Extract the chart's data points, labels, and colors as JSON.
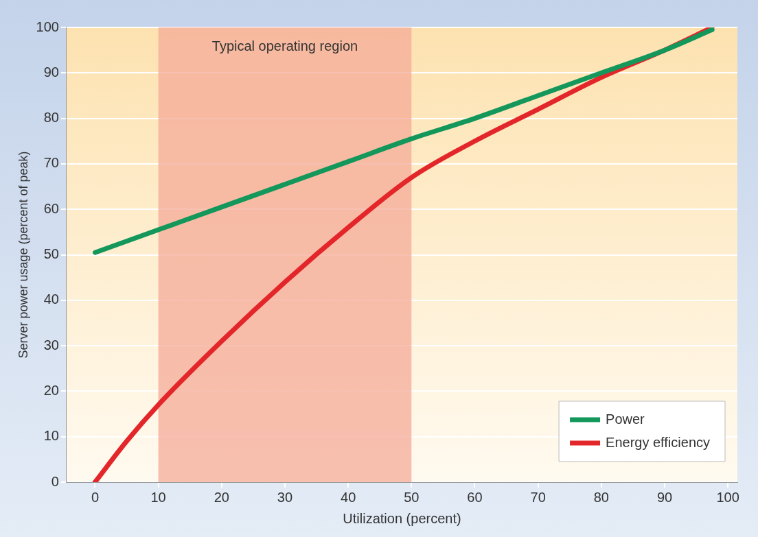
{
  "chart_data": {
    "type": "line",
    "xlabel": "Utilization (percent)",
    "ylabel": "Server power usage (percent of peak)",
    "xlim": [
      -4.5,
      101.5
    ],
    "xticks": [
      0,
      10,
      20,
      30,
      40,
      50,
      60,
      70,
      80,
      90,
      100
    ],
    "ylim": [
      0,
      100
    ],
    "yticks": [
      0,
      10,
      20,
      30,
      40,
      50,
      60,
      70,
      80,
      90,
      100
    ],
    "grid": "y",
    "legend": "bottom right",
    "line_style": "solid",
    "bands": [
      {
        "axis": "x",
        "from": 10,
        "to": 50,
        "label": "Typical operating region",
        "color": "#f4ab98"
      }
    ],
    "series": [
      {
        "name": "Power",
        "color": "#13975a",
        "x": [
          0,
          10,
          20,
          30,
          40,
          50,
          60,
          70,
          80,
          90,
          97.5
        ],
        "values": [
          50.5,
          55.5,
          60.5,
          65.5,
          70.5,
          75.5,
          80,
          85,
          90,
          95,
          99.5
        ]
      },
      {
        "name": "Energy efficiency",
        "color": "#e3262a",
        "x": [
          0,
          5,
          10,
          20,
          30,
          40,
          50,
          60,
          70,
          80,
          90,
          97.5
        ],
        "values": [
          0,
          9,
          17,
          31,
          44,
          56,
          67,
          75,
          82,
          89,
          95,
          100
        ]
      }
    ]
  }
}
